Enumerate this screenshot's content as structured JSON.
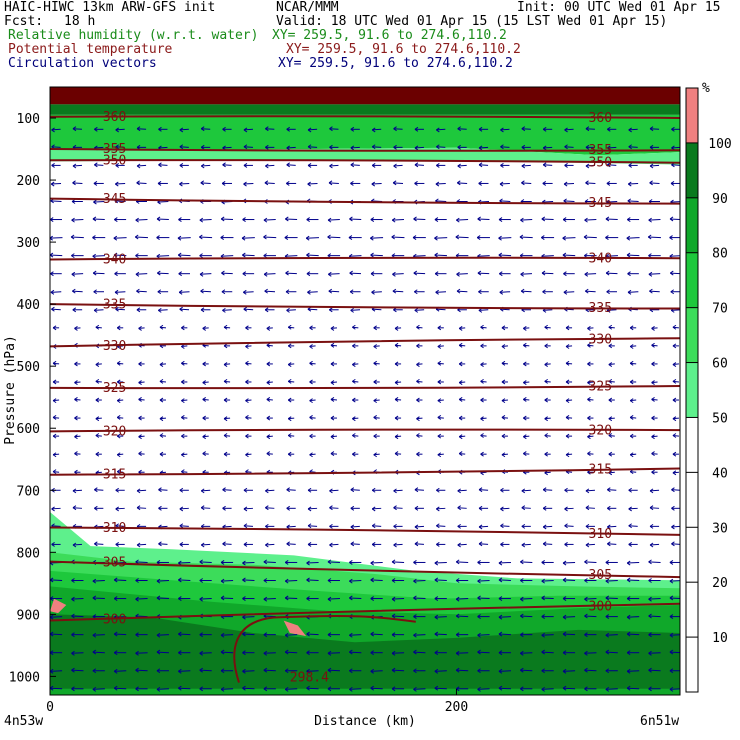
{
  "header": {
    "model": "HAIC-HIWC 13km ARW-GFS init",
    "org": "NCAR/MMM",
    "init": "Init: 00 UTC Wed 01 Apr 15",
    "fcst_label": "Fcst:",
    "fcst_value": "18 h",
    "valid": "Valid: 18 UTC Wed 01 Apr 15 (15 LST Wed 01 Apr 15)",
    "field1_name": "Relative humidity (w.r.t. water)",
    "field1_xy": "XY= 259.5, 91.6 to 274.6,110.2",
    "field2_name": "Potential temperature",
    "field2_xy": "XY= 259.5, 91.6 to 274.6,110.2",
    "field3_name": "Circulation vectors",
    "field3_xy": "XY= 259.5, 91.6 to 274.6,110.2"
  },
  "colors": {
    "rh_text": "#1a8c1a",
    "theta_text": "#8b1a1a",
    "vector_text": "#00007a",
    "theta_line": "#7a1010",
    "vector": "#00008b",
    "rh_50_60": "#5ef08c",
    "rh_60_70": "#3cdc5a",
    "rh_70_80": "#1ec83c",
    "rh_80_90": "#10a82a",
    "rh_90_100": "#0a7a1e",
    "rh_over_100": "#f08080",
    "saturated_top": "#6b0000"
  },
  "chart_data": {
    "type": "heatmap",
    "title": "",
    "xlabel": "Distance (km)",
    "ylabel": "Pressure (hPa)",
    "x_ticks": [
      "0",
      "200"
    ],
    "x_range_km": [
      0,
      310
    ],
    "x_end_labels": [
      "4n53w",
      "6n51w"
    ],
    "y_ticks": [
      "100",
      "200",
      "300",
      "400",
      "500",
      "600",
      "700",
      "800",
      "900",
      "1000"
    ],
    "y_range_hpa": [
      50,
      1030
    ],
    "colorbar": {
      "unit": "%",
      "ticks": [
        "10",
        "20",
        "30",
        "40",
        "50",
        "60",
        "70",
        "80",
        "90",
        "100"
      ],
      "shaded_bins": [
        {
          "range": [
            50,
            60
          ],
          "color": "#5ef08c"
        },
        {
          "range": [
            60,
            70
          ],
          "color": "#3cdc5a"
        },
        {
          "range": [
            70,
            80
          ],
          "color": "#1ec83c"
        },
        {
          "range": [
            80,
            90
          ],
          "color": "#10a82a"
        },
        {
          "range": [
            90,
            100
          ],
          "color": "#0a7a1e"
        },
        {
          "range": [
            100,
            110
          ],
          "color": "#f08080"
        }
      ]
    },
    "theta_contours": [
      {
        "label": "360",
        "p_left": 98,
        "p_right": 100
      },
      {
        "label": "355",
        "p_left": 150,
        "p_right": 152
      },
      {
        "label": "350",
        "p_left": 168,
        "p_right": 172
      },
      {
        "label": "345",
        "p_left": 230,
        "p_right": 238
      },
      {
        "label": "340",
        "p_left": 328,
        "p_right": 326
      },
      {
        "label": "335",
        "p_left": 400,
        "p_right": 407
      },
      {
        "label": "330",
        "p_left": 468,
        "p_right": 455
      },
      {
        "label": "325",
        "p_left": 535,
        "p_right": 532
      },
      {
        "label": "320",
        "p_left": 605,
        "p_right": 603
      },
      {
        "label": "315",
        "p_left": 675,
        "p_right": 665
      },
      {
        "label": "310",
        "p_left": 760,
        "p_right": 772
      },
      {
        "label": "305",
        "p_left": 815,
        "p_right": 840
      },
      {
        "label": "300",
        "p_left": 910,
        "p_right": 883
      },
      {
        "label": "298.4",
        "p_left": 990,
        "p_right": 990
      }
    ],
    "wind": "easterly (vectors point left) throughout, strongest 200-400 hPa and below 800 hPa"
  }
}
